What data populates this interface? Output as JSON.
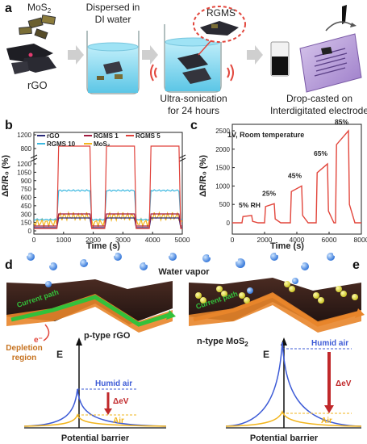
{
  "panel_letters": {
    "a": "a",
    "b": "b",
    "c": "c",
    "d": "d",
    "e": "e"
  },
  "panel_a": {
    "mos2_label_main": "MoS",
    "mos2_label_sub": "2",
    "rgo_label": "rGO",
    "dispersed_line1": "Dispersed in",
    "dispersed_line2": "DI water",
    "rgms_label": "RGMS",
    "sonication_line1": "Ultra-sonication",
    "sonication_line2": "for 24 hours",
    "dropcast_line1": "Drop-casted on",
    "dropcast_line2": "Interdigitated electrode"
  },
  "panel_b": {
    "ylabel": "ΔR/R₀ (%)",
    "xlabel": "Time (s)",
    "legend": [
      "rGO",
      "RGMS 1",
      "RGMS 5",
      "RGMS 10",
      "MoS₂"
    ],
    "colors": {
      "rGO": "#2a2a7a",
      "RGMS 1": "#a11a40",
      "RGMS 5": "#e0413a",
      "RGMS 10": "#3cb8e0",
      "MoS2": "#f2b51d"
    },
    "xticks": [
      "0",
      "1000",
      "2000",
      "3000",
      "4000",
      "5000"
    ],
    "yticks_lower": [
      "0",
      "150",
      "300",
      "450",
      "600",
      "750",
      "900",
      "1050",
      "1200"
    ],
    "yticks_upper": [
      "800",
      "1200"
    ]
  },
  "panel_c": {
    "ylabel": "ΔR/R₀ (%)",
    "xlabel": "Time (s)",
    "condition": "1V, Room temperature",
    "xticks": [
      "0",
      "2000",
      "4000",
      "6000",
      "8000"
    ],
    "yticks": [
      "0",
      "500",
      "1000",
      "1500",
      "2000",
      "2500"
    ],
    "steps": [
      "5% RH",
      "25%",
      "45%",
      "65%",
      "85%"
    ]
  },
  "panel_d": {
    "water_vapor": "Water vapor",
    "current_path": "Current path",
    "electron": "e⁻",
    "ptype": "p-type rGO",
    "depletion_line1": "Depletion",
    "depletion_line2": "region",
    "energy_axis": "E",
    "humid_air": "Humid air",
    "delta_ev": "ΔeV",
    "air": "Air",
    "potential_barrier": "Potential barrier"
  },
  "panel_e": {
    "current_path": "Current path",
    "ntype_main": "n-type MoS",
    "ntype_sub": "2",
    "energy_axis": "E",
    "humid_air": "Humid air",
    "delta_ev": "ΔeV",
    "air": "Air",
    "potential_barrier": "Potential barrier"
  }
}
